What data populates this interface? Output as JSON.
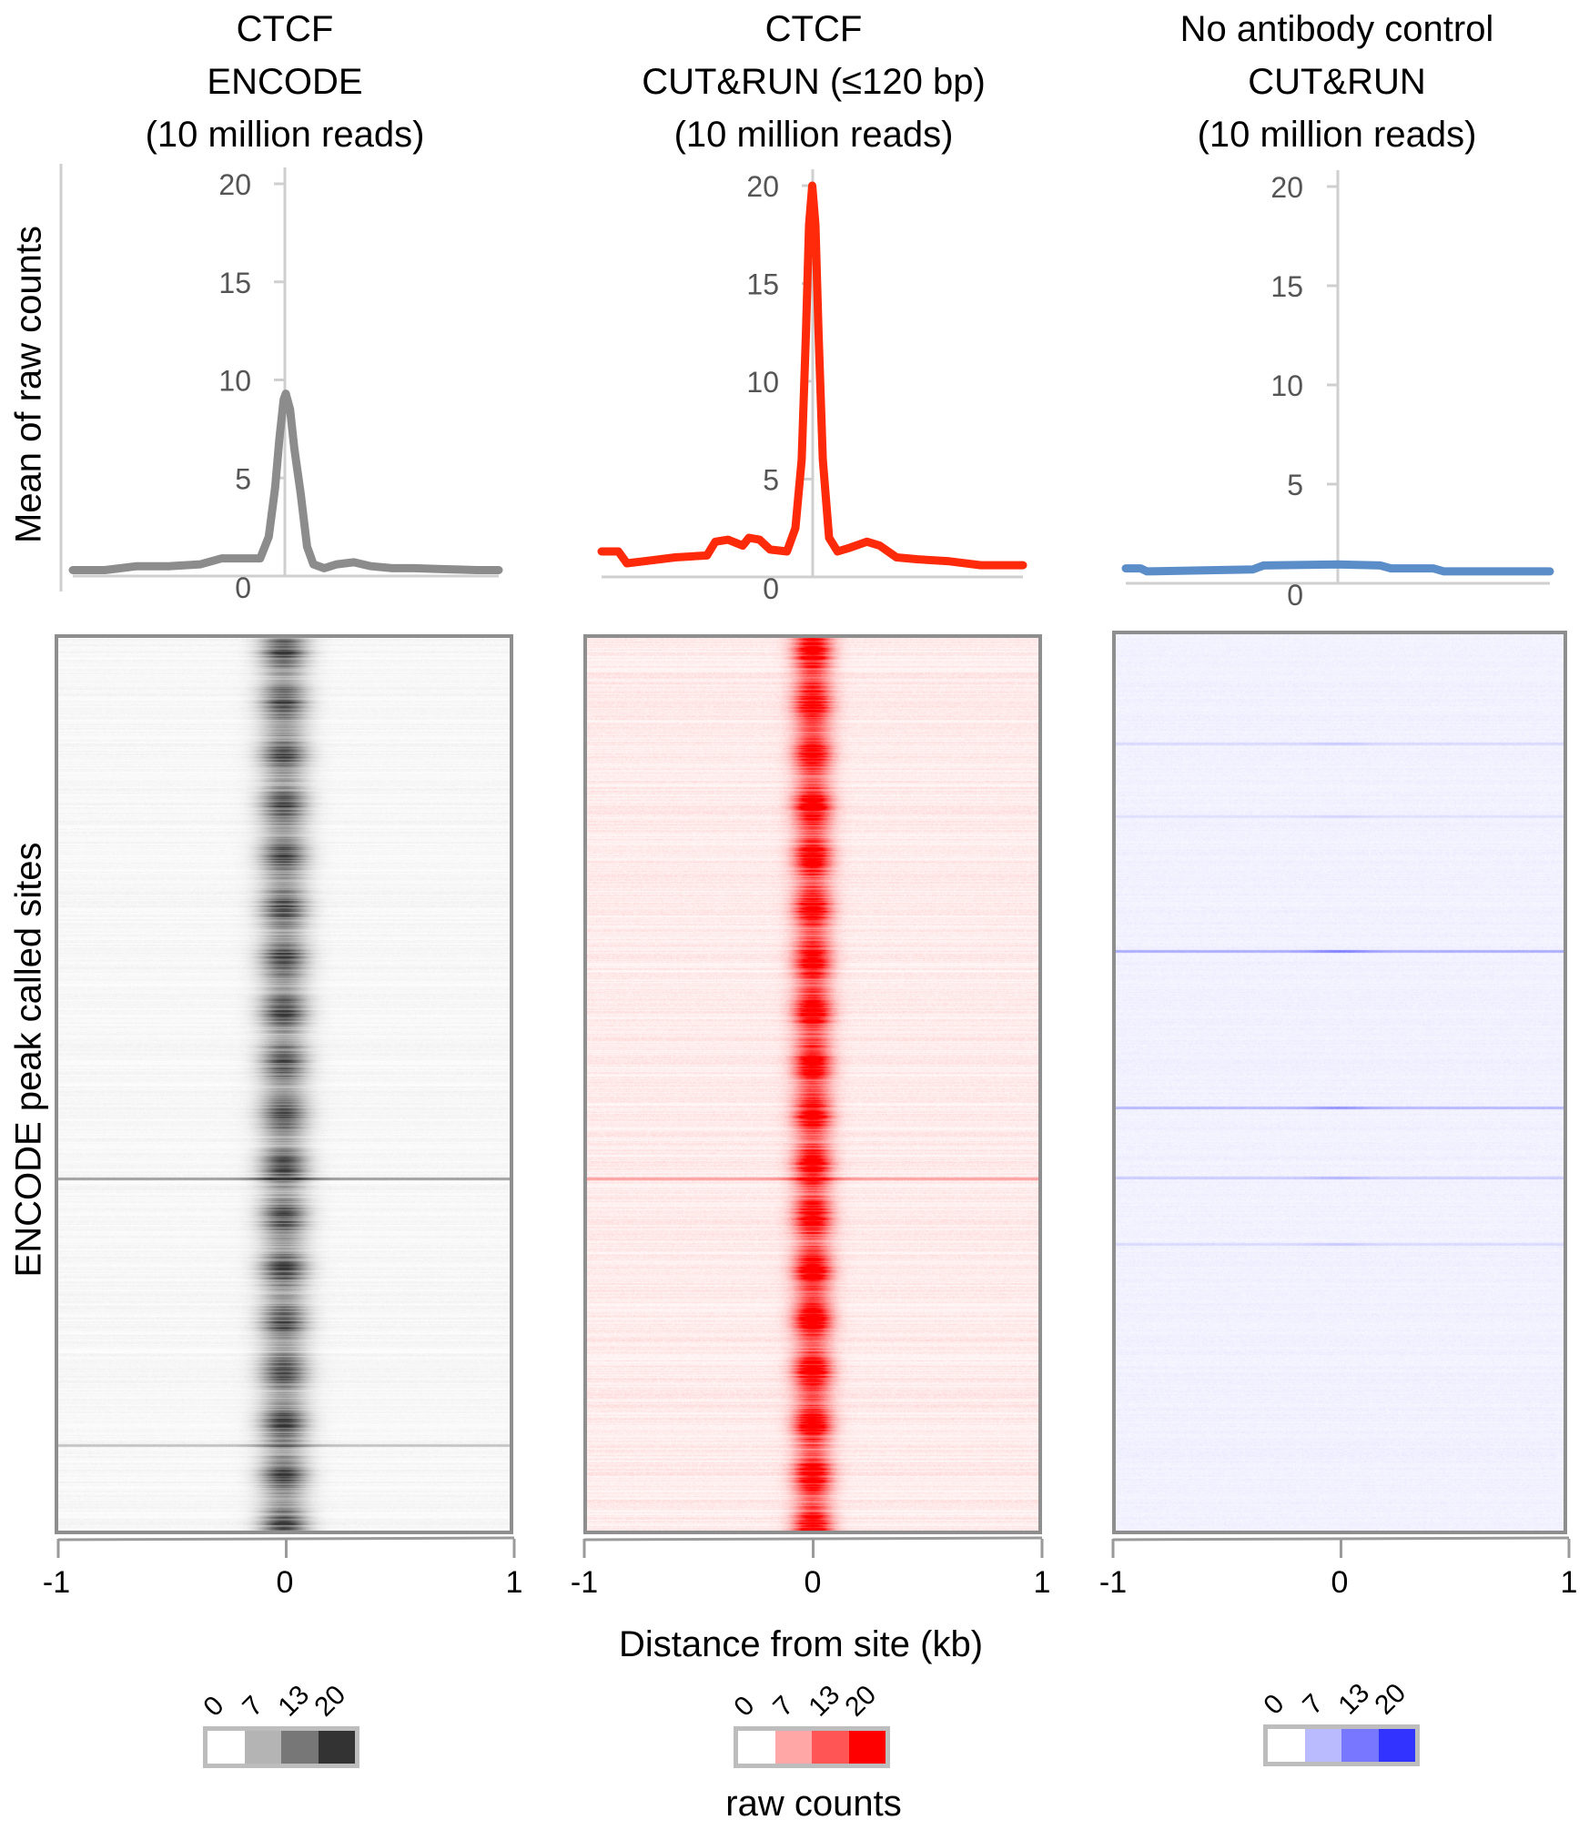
{
  "figure": {
    "y_label_profiles": "Mean of raw counts",
    "y_label_heatmaps": "ENCODE peak called sites",
    "x_axis_title": "Distance from site (kb)",
    "colorbar_title": "raw counts"
  },
  "panels": [
    {
      "id": "encode",
      "title_lines": [
        "CTCF",
        "ENCODE",
        "(10 million reads)"
      ],
      "color": "#8c8c8c",
      "heat_color": "#333333",
      "colorbar": {
        "ticks": [
          "0",
          "7",
          "13",
          "20"
        ],
        "colors": [
          "#ffffff",
          "#b4b4b4",
          "#777777",
          "#333333"
        ]
      }
    },
    {
      "id": "cutrun",
      "title_lines": [
        "CTCF",
        "CUT&RUN (≤120 bp)",
        "(10 million reads)"
      ],
      "color": "#ff2a0a",
      "heat_color": "#ff0000",
      "colorbar": {
        "ticks": [
          "0",
          "7",
          "13",
          "20"
        ],
        "colors": [
          "#ffffff",
          "#ffa6a6",
          "#ff5555",
          "#ff0000"
        ]
      }
    },
    {
      "id": "noab",
      "title_lines": [
        "No antibody control",
        "CUT&RUN",
        "(10 million reads)"
      ],
      "color": "#5b8ec9",
      "heat_color": "#3333ff",
      "colorbar": {
        "ticks": [
          "0",
          "7",
          "13",
          "20"
        ],
        "colors": [
          "#ffffff",
          "#babaff",
          "#7777ff",
          "#3333ff"
        ]
      }
    }
  ],
  "x_ticks": [
    "-1",
    "0",
    "1"
  ],
  "chart_data": [
    {
      "type": "line",
      "title": "CTCF ENCODE (10 million reads)",
      "xlabel": "Distance from site (kb)",
      "ylabel": "Mean of raw counts",
      "xlim": [
        -1,
        1
      ],
      "ylim": [
        0,
        20
      ],
      "y_ticks": [
        0,
        5,
        10,
        15,
        20
      ],
      "grid": false,
      "series": [
        {
          "name": "CTCF ENCODE",
          "color": "#8c8c8c",
          "x": [
            -1.0,
            -0.85,
            -0.7,
            -0.55,
            -0.4,
            -0.3,
            -0.2,
            -0.12,
            -0.08,
            -0.05,
            -0.03,
            -0.01,
            0.0,
            0.02,
            0.04,
            0.07,
            0.1,
            0.13,
            0.18,
            0.24,
            0.32,
            0.4,
            0.5,
            0.6,
            0.75,
            0.9,
            1.0
          ],
          "y": [
            0.3,
            0.3,
            0.5,
            0.5,
            0.6,
            0.9,
            0.9,
            0.9,
            2.0,
            4.5,
            7.0,
            9.0,
            9.3,
            8.5,
            6.5,
            4.2,
            1.5,
            0.6,
            0.4,
            0.6,
            0.7,
            0.5,
            0.4,
            0.4,
            0.35,
            0.3,
            0.3
          ]
        }
      ]
    },
    {
      "type": "line",
      "title": "CTCF CUT&RUN (≤120 bp) (10 million reads)",
      "xlabel": "Distance from site (kb)",
      "ylabel": "Mean of raw counts",
      "xlim": [
        -1,
        1
      ],
      "ylim": [
        0,
        20
      ],
      "y_ticks": [
        0,
        5,
        10,
        15,
        20
      ],
      "grid": false,
      "series": [
        {
          "name": "CTCF CUT&RUN",
          "color": "#ff2a0a",
          "x": [
            -1.0,
            -0.92,
            -0.88,
            -0.8,
            -0.65,
            -0.5,
            -0.46,
            -0.4,
            -0.33,
            -0.3,
            -0.25,
            -0.2,
            -0.12,
            -0.08,
            -0.05,
            -0.03,
            -0.015,
            0.0,
            0.015,
            0.03,
            0.05,
            0.08,
            0.12,
            0.18,
            0.26,
            0.32,
            0.4,
            0.5,
            0.65,
            0.8,
            0.9,
            1.0
          ],
          "y": [
            1.3,
            1.3,
            0.7,
            0.8,
            1.0,
            1.1,
            1.8,
            1.9,
            1.6,
            2.0,
            1.9,
            1.4,
            1.3,
            2.5,
            6.0,
            12.5,
            18.0,
            20.0,
            18.0,
            12.5,
            6.0,
            2.0,
            1.3,
            1.5,
            1.8,
            1.6,
            1.0,
            0.9,
            0.8,
            0.6,
            0.6,
            0.6
          ]
        }
      ]
    },
    {
      "type": "line",
      "title": "No antibody control CUT&RUN (10 million reads)",
      "xlabel": "Distance from site (kb)",
      "ylabel": "Mean of raw counts",
      "xlim": [
        -1,
        1
      ],
      "ylim": [
        0,
        20
      ],
      "y_ticks": [
        0,
        5,
        10,
        15,
        20
      ],
      "grid": false,
      "series": [
        {
          "name": "No antibody control",
          "color": "#5b8ec9",
          "x": [
            -1.0,
            -0.93,
            -0.9,
            -0.4,
            -0.35,
            0.0,
            0.2,
            0.25,
            0.45,
            0.5,
            1.0
          ],
          "y": [
            0.75,
            0.75,
            0.6,
            0.7,
            0.9,
            0.95,
            0.9,
            0.75,
            0.75,
            0.6,
            0.6
          ]
        }
      ]
    },
    {
      "type": "heatmap",
      "title": "CTCF ENCODE heatmap",
      "xlabel": "Distance from site (kb)",
      "ylabel": "ENCODE peak called sites",
      "xlim": [
        -1,
        1
      ],
      "x_ticks": [
        -1,
        0,
        1
      ],
      "color_scale": {
        "label": "raw counts",
        "ticks": [
          0,
          7,
          13,
          20
        ],
        "colors": [
          "#ffffff",
          "#b4b4b4",
          "#777777",
          "#333333"
        ]
      },
      "pattern": "strong dark band centered at 0 kb across all sites"
    },
    {
      "type": "heatmap",
      "title": "CTCF CUT&RUN (≤120 bp) heatmap",
      "xlabel": "Distance from site (kb)",
      "xlim": [
        -1,
        1
      ],
      "x_ticks": [
        -1,
        0,
        1
      ],
      "color_scale": {
        "label": "raw counts",
        "ticks": [
          0,
          7,
          13,
          20
        ],
        "colors": [
          "#ffffff",
          "#ffa6a6",
          "#ff5555",
          "#ff0000"
        ]
      },
      "pattern": "narrow intense red band centered at 0 kb across all sites"
    },
    {
      "type": "heatmap",
      "title": "No antibody control CUT&RUN heatmap",
      "xlabel": "Distance from site (kb)",
      "xlim": [
        -1,
        1
      ],
      "x_ticks": [
        -1,
        0,
        1
      ],
      "color_scale": {
        "label": "raw counts",
        "ticks": [
          0,
          7,
          13,
          20
        ],
        "colors": [
          "#ffffff",
          "#babaff",
          "#7777ff",
          "#3333ff"
        ]
      },
      "pattern": "near-uniform faint background, no central enrichment"
    }
  ]
}
